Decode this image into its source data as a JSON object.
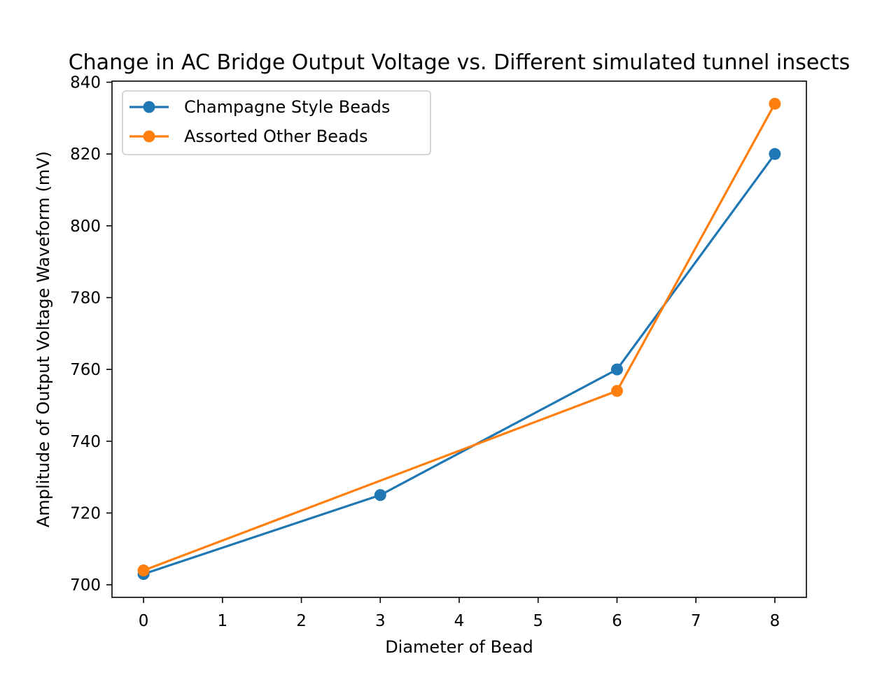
{
  "chart_data": {
    "type": "line",
    "title": "Change in AC Bridge Output Voltage vs. Different simulated tunnel insects",
    "xlabel": "Diameter of Bead",
    "ylabel": "Amplitude of Output Voltage Waveform (mV)",
    "xlim": [
      -0.4,
      8.4
    ],
    "ylim": [
      696.5,
      840.3
    ],
    "xticks": [
      0,
      1,
      2,
      3,
      4,
      5,
      6,
      7,
      8
    ],
    "yticks": [
      700,
      720,
      740,
      760,
      780,
      800,
      820,
      840
    ],
    "grid": false,
    "legend_position": "top-left",
    "series": [
      {
        "name": "Champagne Style Beads",
        "color": "#1f77b4",
        "marker": "circle",
        "x": [
          0,
          3,
          6,
          8
        ],
        "y": [
          703,
          725,
          760,
          820
        ]
      },
      {
        "name": "Assorted Other Beads",
        "color": "#ff7f0e",
        "marker": "circle",
        "x": [
          0,
          6,
          8
        ],
        "y": [
          704,
          754,
          834
        ]
      }
    ]
  }
}
